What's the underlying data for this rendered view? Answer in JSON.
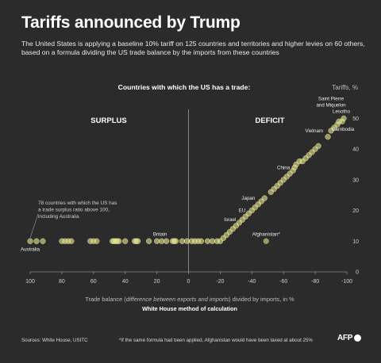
{
  "header": {
    "title": "Tariffs announced by Trump",
    "subtitle": "The United States is applying a baseline 10% tariff on 125 countries and territories and higher levies on 60 others, based on a formula dividing the US trade balance by the imports from these countries"
  },
  "chart_data": {
    "type": "scatter",
    "title": "Countries with which the US has a trade:",
    "ylabel": "Tariffs, %",
    "xlabel_plain_1": "Trade balance (",
    "xlabel_italic": "difference between exports and imports",
    "xlabel_plain_2": ") divided by imports, in %",
    "xlabel_sub": "White House method of calculation",
    "xlim": [
      100,
      -100
    ],
    "ylim": [
      0,
      55
    ],
    "x_ticks": [
      "100",
      "80",
      "60",
      "40",
      "20",
      "0",
      "-20",
      "-40",
      "-60",
      "-80",
      "-100"
    ],
    "x_tick_values": [
      100,
      80,
      60,
      40,
      20,
      0,
      -20,
      -40,
      -60,
      -80,
      -100
    ],
    "y_ticks": [
      "0",
      "10",
      "20",
      "30",
      "40",
      "50"
    ],
    "y_tick_values": [
      0,
      10,
      20,
      30,
      40,
      50
    ],
    "regions": {
      "surplus": "SURPLUS",
      "deficit": "DEFICIT"
    },
    "colors": {
      "point": "#e2e28c",
      "point_dark": "#9a9a6a",
      "axis": "#8a8a8a",
      "background": "#2b2b2b"
    },
    "annotation": "78 countries with which the US has a trade surplus ratio above 100, including Australia",
    "points": [
      {
        "x": 100,
        "y": 10
      },
      {
        "x": 96,
        "y": 10
      },
      {
        "x": 92,
        "y": 10
      },
      {
        "x": 80,
        "y": 10
      },
      {
        "x": 78,
        "y": 10
      },
      {
        "x": 76,
        "y": 10
      },
      {
        "x": 74,
        "y": 10
      },
      {
        "x": 62,
        "y": 10
      },
      {
        "x": 60,
        "y": 10
      },
      {
        "x": 58,
        "y": 10
      },
      {
        "x": 48,
        "y": 10
      },
      {
        "x": 47,
        "y": 10
      },
      {
        "x": 46,
        "y": 10
      },
      {
        "x": 45,
        "y": 10
      },
      {
        "x": 44,
        "y": 10
      },
      {
        "x": 40,
        "y": 10
      },
      {
        "x": 34,
        "y": 10
      },
      {
        "x": 33,
        "y": 10
      },
      {
        "x": 32,
        "y": 10
      },
      {
        "x": 25,
        "y": 10
      },
      {
        "x": 20,
        "y": 10
      },
      {
        "x": 17,
        "y": 10
      },
      {
        "x": 14,
        "y": 10
      },
      {
        "x": 10,
        "y": 10
      },
      {
        "x": 9,
        "y": 10
      },
      {
        "x": 8,
        "y": 10
      },
      {
        "x": 4,
        "y": 10
      },
      {
        "x": 1,
        "y": 10
      },
      {
        "x": -2,
        "y": 10
      },
      {
        "x": -4,
        "y": 10
      },
      {
        "x": -6,
        "y": 10
      },
      {
        "x": -8,
        "y": 10
      },
      {
        "x": -12,
        "y": 10
      },
      {
        "x": -15,
        "y": 10
      },
      {
        "x": -18,
        "y": 10
      },
      {
        "x": -20,
        "y": 10
      },
      {
        "x": -22,
        "y": 11
      },
      {
        "x": -24,
        "y": 12
      },
      {
        "x": -26,
        "y": 13
      },
      {
        "x": -28,
        "y": 14
      },
      {
        "x": -30,
        "y": 15
      },
      {
        "x": -32,
        "y": 16
      },
      {
        "x": -34,
        "y": 17
      },
      {
        "x": -36,
        "y": 18
      },
      {
        "x": -38,
        "y": 19
      },
      {
        "x": -40,
        "y": 20
      },
      {
        "x": -42,
        "y": 21
      },
      {
        "x": -44,
        "y": 22
      },
      {
        "x": -46,
        "y": 23
      },
      {
        "x": -48,
        "y": 24
      },
      {
        "x": -52,
        "y": 26
      },
      {
        "x": -54,
        "y": 27
      },
      {
        "x": -56,
        "y": 28
      },
      {
        "x": -58,
        "y": 29
      },
      {
        "x": -60,
        "y": 30
      },
      {
        "x": -62,
        "y": 31
      },
      {
        "x": -64,
        "y": 32
      },
      {
        "x": -66,
        "y": 33
      },
      {
        "x": -67,
        "y": 34
      },
      {
        "x": -68,
        "y": 35
      },
      {
        "x": -70,
        "y": 36
      },
      {
        "x": -72,
        "y": 36
      },
      {
        "x": -74,
        "y": 37
      },
      {
        "x": -76,
        "y": 38
      },
      {
        "x": -78,
        "y": 39
      },
      {
        "x": -80,
        "y": 40
      },
      {
        "x": -82,
        "y": 41
      },
      {
        "x": -88,
        "y": 44
      },
      {
        "x": -90,
        "y": 46
      },
      {
        "x": -92,
        "y": 47
      },
      {
        "x": -94,
        "y": 48
      },
      {
        "x": -95,
        "y": 49
      },
      {
        "x": -97,
        "y": 49
      },
      {
        "x": -98,
        "y": 50
      },
      {
        "x": -49,
        "y": 10,
        "dark": true
      }
    ],
    "labels": [
      {
        "text": "Australia",
        "x": 100,
        "y": 10,
        "anchor": "middle",
        "pos": "below"
      },
      {
        "text": "Britain",
        "x": 18,
        "y": 10,
        "anchor": "middle",
        "pos": "above"
      },
      {
        "text": "Afghanistan*",
        "x": -49,
        "y": 10,
        "anchor": "middle",
        "pos": "above"
      },
      {
        "text": "Israel",
        "x": -33,
        "y": 17,
        "anchor": "end",
        "pos": "left"
      },
      {
        "text": "EU",
        "x": -39,
        "y": 20,
        "anchor": "end",
        "pos": "left"
      },
      {
        "text": "Japan",
        "x": -45,
        "y": 24,
        "anchor": "end",
        "pos": "left"
      },
      {
        "text": "China",
        "x": -67,
        "y": 34,
        "anchor": "end",
        "pos": "left"
      },
      {
        "text": "Vietnam",
        "x": -88,
        "y": 46,
        "anchor": "end",
        "pos": "left"
      },
      {
        "text": "Cambodia",
        "x": -92,
        "y": 49,
        "anchor": "start",
        "pos": "belowright"
      },
      {
        "text": "Lesotho",
        "x": -95,
        "y": 50,
        "anchor": "middle",
        "pos": "above"
      },
      {
        "text": "Saint Pierre",
        "x": -90,
        "y": 50,
        "anchor": "middle",
        "pos": "above2a"
      },
      {
        "text": "and Miquelon",
        "x": -90,
        "y": 50,
        "anchor": "middle",
        "pos": "above2b"
      }
    ]
  },
  "footer": {
    "sources": "Sources:  White House, USITC",
    "note": "*If the same formula had been applied,  Afghanistan would have been taxed at about 25%",
    "brand": "AFP"
  }
}
